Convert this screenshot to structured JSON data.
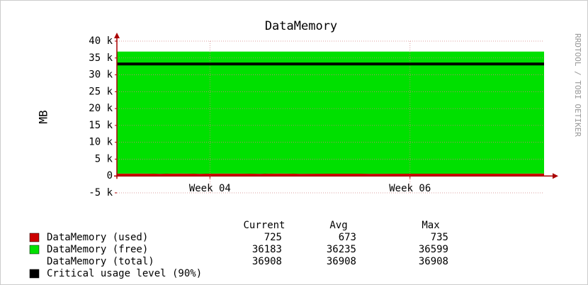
{
  "chart_data": {
    "type": "stacked_area",
    "title": "DataMemory",
    "ylabel": "MB",
    "side_text": "RRDTOOL / TOBI OETIKER",
    "x": [
      3.07,
      3.3,
      3.5,
      3.7,
      3.9,
      4.1,
      4.3,
      4.5,
      4.7,
      4.9,
      5.2,
      5.6,
      6.0,
      6.4,
      6.8,
      7.1,
      7.34
    ],
    "xlim": [
      3.07,
      7.34
    ],
    "xticks": [
      {
        "value": 4,
        "label": "Week 04"
      },
      {
        "value": 6,
        "label": "Week 06"
      }
    ],
    "ylim": [
      -5000,
      40000
    ],
    "yticks": [
      {
        "value": -5000,
        "label": "-5 k"
      },
      0,
      {
        "value": 5000,
        "label": "5 k"
      },
      {
        "value": 10000,
        "label": "10 k"
      },
      {
        "value": 15000,
        "label": "15 k"
      },
      {
        "value": 20000,
        "label": "20 k"
      },
      {
        "value": 25000,
        "label": "25 k"
      },
      {
        "value": 30000,
        "label": "30 k"
      },
      {
        "value": 35000,
        "label": "35 k"
      },
      {
        "value": 40000,
        "label": "40 k"
      }
    ],
    "grid": true,
    "stat_headers": [
      "Current",
      "Avg",
      "Max"
    ],
    "series": [
      {
        "name": "DataMemory (used)",
        "color": "#cc0000",
        "stack": true,
        "values": [
          700,
          735,
          650,
          720,
          640,
          730,
          700,
          660,
          720,
          650,
          690,
          660,
          670,
          680,
          690,
          700,
          725
        ],
        "stats": [
          725,
          673,
          735
        ]
      },
      {
        "name": "DataMemory (free)",
        "color": "#00e000",
        "stack": true,
        "values": [
          36208,
          36173,
          36258,
          36188,
          36268,
          36178,
          36208,
          36248,
          36188,
          36258,
          36218,
          36248,
          36238,
          36228,
          36218,
          36208,
          36183
        ],
        "stats": [
          36183,
          36235,
          36599
        ]
      },
      {
        "name": "Critical usage level (90%)",
        "color": "#000000",
        "stack": false,
        "values": [
          33217,
          33217,
          33217,
          33217,
          33217,
          33217,
          33217,
          33217,
          33217,
          33217,
          33217,
          33217,
          33217,
          33217,
          33217,
          33217,
          33217
        ]
      }
    ],
    "total": {
      "name": "DataMemory (total)",
      "stats": [
        36908,
        36908,
        36908
      ]
    }
  }
}
